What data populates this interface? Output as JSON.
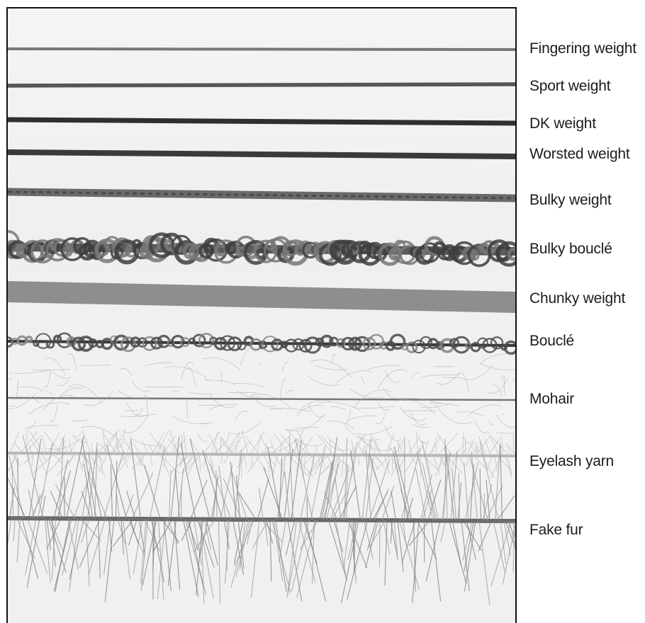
{
  "figure": {
    "labels": [
      "Fingering weight",
      "Sport weight",
      "DK weight",
      "Worsted weight",
      "Bulky weight",
      "Bulky bouclé",
      "Chunky weight",
      "Bouclé",
      "Mohair",
      "Eyelash yarn",
      "Fake fur"
    ],
    "colors": {
      "background": "#f0f0f0",
      "yarn_dark": "#333333",
      "yarn_mid": "#6f6f6f",
      "yarn_light": "#9a9a9a",
      "frame": "#111111"
    }
  }
}
